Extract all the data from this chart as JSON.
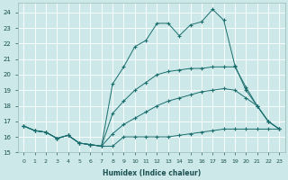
{
  "xlabel": "Humidex (Indice chaleur)",
  "bg_color": "#cde8e8",
  "grid_color": "#ffffff",
  "line_color": "#1a6e6e",
  "xlim": [
    -0.5,
    23.5
  ],
  "ylim": [
    15,
    24.6
  ],
  "yticks": [
    15,
    16,
    17,
    18,
    19,
    20,
    21,
    22,
    23,
    24
  ],
  "xticks": [
    0,
    1,
    2,
    3,
    4,
    5,
    6,
    7,
    8,
    9,
    10,
    11,
    12,
    13,
    14,
    15,
    16,
    17,
    18,
    19,
    20,
    21,
    22,
    23
  ],
  "series": [
    {
      "x": [
        0,
        1,
        2,
        3,
        4,
        5,
        6,
        7,
        8,
        9,
        10,
        11,
        12,
        13,
        14,
        15,
        16,
        17,
        18,
        19,
        20,
        21,
        22,
        23
      ],
      "y": [
        16.7,
        16.4,
        16.3,
        15.9,
        16.1,
        15.6,
        15.5,
        15.4,
        15.4,
        16.0,
        16.0,
        16.0,
        16.0,
        16.0,
        16.1,
        16.2,
        16.3,
        16.4,
        16.5,
        16.5,
        16.5,
        16.5,
        16.5,
        16.5
      ]
    },
    {
      "x": [
        0,
        1,
        2,
        3,
        4,
        5,
        6,
        7,
        8,
        9,
        10,
        11,
        12,
        13,
        14,
        15,
        16,
        17,
        18,
        19,
        20,
        21,
        22,
        23
      ],
      "y": [
        16.7,
        16.4,
        16.3,
        15.9,
        16.1,
        15.6,
        15.5,
        15.4,
        16.2,
        16.8,
        17.2,
        17.6,
        18.0,
        18.3,
        18.5,
        18.7,
        18.9,
        19.0,
        19.1,
        19.0,
        18.5,
        18.0,
        17.0,
        16.5
      ]
    },
    {
      "x": [
        0,
        1,
        2,
        3,
        4,
        5,
        6,
        7,
        8,
        9,
        10,
        11,
        12,
        13,
        14,
        15,
        16,
        17,
        18,
        19,
        20,
        21,
        22,
        23
      ],
      "y": [
        16.7,
        16.4,
        16.3,
        15.9,
        16.1,
        15.6,
        15.5,
        15.4,
        17.5,
        18.3,
        19.0,
        19.5,
        20.0,
        20.2,
        20.3,
        20.4,
        20.4,
        20.5,
        20.5,
        20.5,
        19.2,
        18.0,
        17.0,
        16.5
      ]
    },
    {
      "x": [
        0,
        1,
        2,
        3,
        4,
        5,
        6,
        7,
        8,
        9,
        10,
        11,
        12,
        13,
        14,
        15,
        16,
        17,
        18,
        19,
        20,
        21,
        22,
        23
      ],
      "y": [
        16.7,
        16.4,
        16.3,
        15.9,
        16.1,
        15.6,
        15.5,
        15.4,
        19.4,
        20.5,
        21.8,
        22.2,
        23.3,
        23.3,
        22.5,
        23.2,
        23.4,
        24.2,
        23.5,
        20.6,
        19.0,
        18.0,
        17.0,
        16.5
      ]
    }
  ]
}
